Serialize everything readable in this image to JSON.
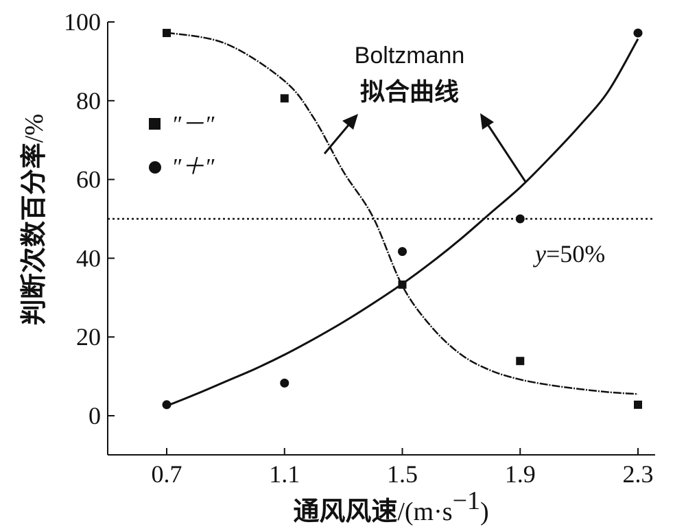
{
  "chart_data": {
    "type": "scatter",
    "title": "",
    "xlabel": "通风风速",
    "xunit": "/(m·s",
    "xunit_sup": "−1",
    "xunit_close": ")",
    "ylabel": "判断次数百分率",
    "yunit": "/%",
    "xlim": [
      0.5,
      2.35
    ],
    "ylim": [
      -10,
      100
    ],
    "x_ticks": [
      "0.7",
      "1.1",
      "1.5",
      "1.9",
      "2.3"
    ],
    "y_ticks": [
      "0",
      "20",
      "40",
      "60",
      "80",
      "100"
    ],
    "series": [
      {
        "name": "″－″",
        "marker": "square",
        "fit_line": "dash-dot",
        "points": [
          [
            0.7,
            97.2
          ],
          [
            1.1,
            80.6
          ],
          [
            1.5,
            33.3
          ],
          [
            1.9,
            13.9
          ],
          [
            2.3,
            2.8
          ]
        ],
        "fit": [
          [
            0.7,
            97.3
          ],
          [
            0.9,
            94.5
          ],
          [
            1.1,
            85.0
          ],
          [
            1.2,
            75.5
          ],
          [
            1.3,
            62.0
          ],
          [
            1.4,
            50.5
          ],
          [
            1.5,
            33.0
          ],
          [
            1.6,
            22.5
          ],
          [
            1.7,
            15.5
          ],
          [
            1.8,
            11.5
          ],
          [
            1.9,
            9.2
          ],
          [
            2.0,
            7.8
          ],
          [
            2.1,
            6.8
          ],
          [
            2.2,
            6.0
          ],
          [
            2.3,
            5.5
          ]
        ]
      },
      {
        "name": "″＋″",
        "marker": "circle",
        "fit_line": "solid",
        "points": [
          [
            0.7,
            2.8
          ],
          [
            1.1,
            8.3
          ],
          [
            1.5,
            41.7
          ],
          [
            1.9,
            50.0
          ],
          [
            2.3,
            97.2
          ]
        ],
        "fit": [
          [
            0.7,
            2.5
          ],
          [
            0.8,
            5.5
          ],
          [
            0.9,
            8.7
          ],
          [
            1.0,
            11.9
          ],
          [
            1.1,
            15.5
          ],
          [
            1.2,
            19.5
          ],
          [
            1.3,
            23.8
          ],
          [
            1.4,
            28.5
          ],
          [
            1.5,
            33.5
          ],
          [
            1.6,
            39.0
          ],
          [
            1.7,
            45.0
          ],
          [
            1.8,
            51.5
          ],
          [
            1.9,
            58.0
          ],
          [
            2.0,
            65.5
          ],
          [
            2.1,
            73.5
          ],
          [
            2.2,
            82.5
          ],
          [
            2.3,
            95.7
          ]
        ]
      }
    ],
    "reference_line": {
      "y": 50,
      "style": "dotted",
      "label_var": "y",
      "label_rest": "=50%"
    },
    "annotation": {
      "line1": "Boltzmann",
      "line2": "拟合曲线"
    },
    "legend_position": "top-left",
    "grid": false
  }
}
